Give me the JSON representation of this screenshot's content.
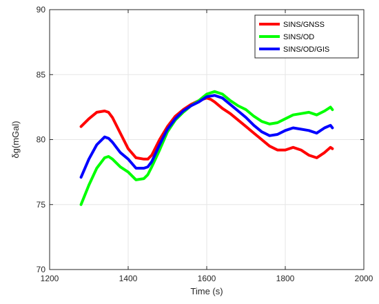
{
  "chart_data": {
    "type": "line",
    "xlabel": "Time (s)",
    "ylabel": "δg(mGal)",
    "xlim": [
      1200,
      2000
    ],
    "ylim": [
      70,
      90
    ],
    "xticks": [
      1200,
      1400,
      1600,
      1800,
      2000
    ],
    "yticks": [
      70,
      75,
      80,
      85,
      90
    ],
    "grid": true,
    "legend_position": "top-right",
    "series": [
      {
        "name": "SINS/GNSS",
        "color": "#ff0000",
        "x": [
          1280,
          1300,
          1320,
          1340,
          1350,
          1360,
          1380,
          1400,
          1420,
          1440,
          1450,
          1460,
          1480,
          1500,
          1520,
          1540,
          1560,
          1580,
          1600,
          1610,
          1620,
          1640,
          1660,
          1680,
          1700,
          1720,
          1740,
          1760,
          1780,
          1800,
          1820,
          1840,
          1860,
          1880,
          1900,
          1915,
          1920
        ],
        "y": [
          81.0,
          81.6,
          82.1,
          82.2,
          82.1,
          81.7,
          80.5,
          79.3,
          78.6,
          78.5,
          78.5,
          78.8,
          80.0,
          81.0,
          81.8,
          82.3,
          82.7,
          83.0,
          83.2,
          83.1,
          82.9,
          82.4,
          82.0,
          81.5,
          81.0,
          80.5,
          80.0,
          79.5,
          79.2,
          79.2,
          79.4,
          79.2,
          78.8,
          78.6,
          79.0,
          79.4,
          79.3
        ]
      },
      {
        "name": "SINS/OD",
        "color": "#00ff00",
        "x": [
          1280,
          1300,
          1320,
          1340,
          1350,
          1360,
          1380,
          1400,
          1420,
          1440,
          1450,
          1460,
          1480,
          1500,
          1520,
          1540,
          1560,
          1580,
          1600,
          1620,
          1640,
          1660,
          1680,
          1700,
          1720,
          1740,
          1760,
          1780,
          1800,
          1820,
          1840,
          1860,
          1880,
          1900,
          1915,
          1920
        ],
        "y": [
          75.0,
          76.5,
          77.8,
          78.6,
          78.7,
          78.5,
          77.9,
          77.5,
          76.9,
          77.0,
          77.3,
          77.9,
          79.2,
          80.6,
          81.5,
          82.1,
          82.6,
          83.0,
          83.5,
          83.7,
          83.5,
          83.0,
          82.6,
          82.3,
          81.8,
          81.4,
          81.2,
          81.3,
          81.6,
          81.9,
          82.0,
          82.1,
          81.9,
          82.2,
          82.5,
          82.3
        ]
      },
      {
        "name": "SINS/OD/GIS",
        "color": "#0000ff",
        "x": [
          1280,
          1300,
          1320,
          1340,
          1350,
          1360,
          1380,
          1400,
          1420,
          1440,
          1450,
          1460,
          1480,
          1500,
          1520,
          1540,
          1560,
          1580,
          1600,
          1620,
          1640,
          1660,
          1680,
          1700,
          1720,
          1740,
          1760,
          1780,
          1800,
          1820,
          1840,
          1860,
          1880,
          1900,
          1915,
          1920
        ],
        "y": [
          77.1,
          78.5,
          79.6,
          80.2,
          80.1,
          79.8,
          79.0,
          78.5,
          77.8,
          77.8,
          77.9,
          78.3,
          79.6,
          80.8,
          81.6,
          82.2,
          82.6,
          82.9,
          83.3,
          83.4,
          83.2,
          82.7,
          82.2,
          81.7,
          81.1,
          80.6,
          80.3,
          80.4,
          80.7,
          80.9,
          80.8,
          80.7,
          80.5,
          80.9,
          81.1,
          80.9
        ]
      }
    ]
  }
}
